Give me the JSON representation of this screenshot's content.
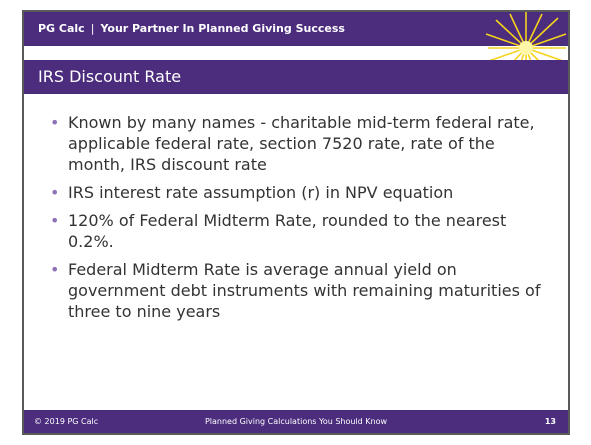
{
  "header": {
    "brand": "PG Calc",
    "separator": "|",
    "tagline": "Your Partner In Planned Giving Success"
  },
  "title": "IRS Discount Rate",
  "bullets": [
    "Known by many names - charitable mid-term federal rate, applicable federal rate, section 7520 rate, rate of the month, IRS discount rate",
    "IRS interest rate assumption (r) in NPV equation",
    "120% of Federal Midterm Rate, rounded to the nearest 0.2%.",
    "Federal Midterm Rate is average annual yield on government debt instruments with remaining maturities of three to nine years"
  ],
  "footer": {
    "copyright": "© 2019 PG Calc",
    "center": "Planned Giving Calculations You Should Know",
    "page": "13"
  }
}
